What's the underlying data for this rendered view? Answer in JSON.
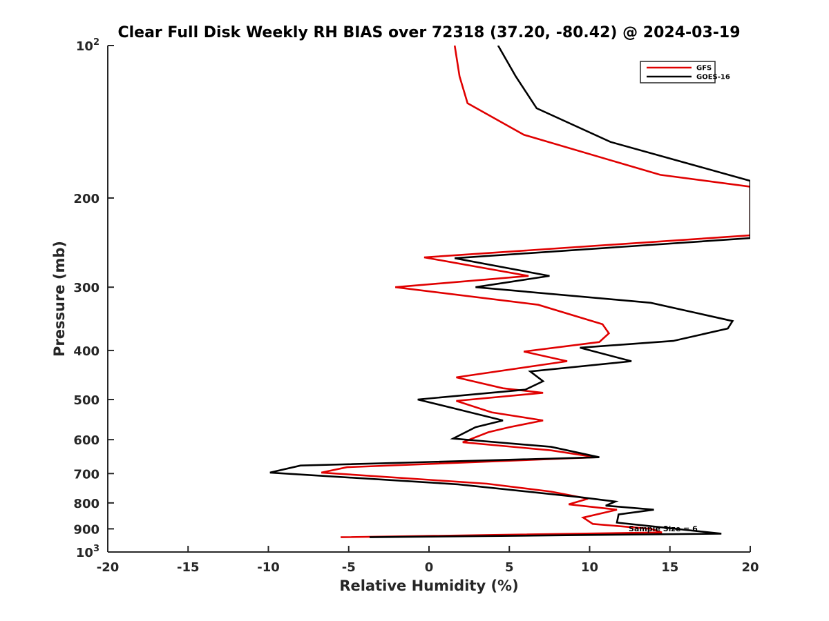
{
  "chart_data": {
    "type": "line",
    "title": "Clear Full Disk Weekly RH BIAS over 72318 (37.20, -80.42) @ 2024-03-19",
    "xlabel": "Relative Humidity (%)",
    "ylabel": "Pressure (mb)",
    "xlim": [
      -20,
      20
    ],
    "ylim": [
      100,
      1000
    ],
    "y_scale": "log",
    "y_reversed": true,
    "x_ticks": [
      "-20",
      "-15",
      "-10",
      "-5",
      "0",
      "5",
      "10",
      "15",
      "20"
    ],
    "y_ticks": [
      {
        "value": 100,
        "base": "10",
        "exp": "2"
      },
      {
        "value": 200,
        "label": "200"
      },
      {
        "value": 300,
        "label": "300"
      },
      {
        "value": 400,
        "label": "400"
      },
      {
        "value": 500,
        "label": "500"
      },
      {
        "value": 600,
        "label": "600"
      },
      {
        "value": 700,
        "label": "700"
      },
      {
        "value": 800,
        "label": "800"
      },
      {
        "value": 900,
        "label": "900"
      },
      {
        "value": 1000,
        "base": "10",
        "exp": "3"
      }
    ],
    "grid": false,
    "legend_position": "top-right",
    "annotation": "Sample Size = 6",
    "series": [
      {
        "name": "GFS",
        "color": "#e00000",
        "points": [
          [
            1.6,
            100
          ],
          [
            1.9,
            115
          ],
          [
            2.4,
            130
          ],
          [
            5.9,
            150
          ],
          [
            14.4,
            180
          ],
          [
            20,
            190
          ],
          [
            20,
            237
          ],
          [
            -0.3,
            262
          ],
          [
            6.2,
            285
          ],
          [
            -2.1,
            300
          ],
          [
            6.8,
            325
          ],
          [
            10.8,
            355
          ],
          [
            11.2,
            370
          ],
          [
            10.6,
            385
          ],
          [
            5.9,
            402
          ],
          [
            8.6,
            420
          ],
          [
            1.7,
            452
          ],
          [
            4.6,
            475
          ],
          [
            7.1,
            485
          ],
          [
            1.7,
            503
          ],
          [
            3.9,
            530
          ],
          [
            7.1,
            550
          ],
          [
            5.0,
            567
          ],
          [
            3.7,
            580
          ],
          [
            2.1,
            607
          ],
          [
            7.6,
            630
          ],
          [
            10.4,
            650
          ],
          [
            -5.1,
            680
          ],
          [
            -6.7,
            697
          ],
          [
            3.6,
            733
          ],
          [
            7.6,
            760
          ],
          [
            9.9,
            785
          ],
          [
            8.7,
            805
          ],
          [
            11.7,
            825
          ],
          [
            9.6,
            855
          ],
          [
            10.2,
            880
          ],
          [
            13.8,
            900
          ],
          [
            14.5,
            915
          ],
          [
            -5.5,
            935
          ]
        ]
      },
      {
        "name": "GOES-16",
        "color": "#000000",
        "points": [
          [
            4.3,
            100
          ],
          [
            5.4,
            115
          ],
          [
            6.7,
            133
          ],
          [
            11.3,
            155
          ],
          [
            20,
            185
          ],
          [
            20,
            240
          ],
          [
            1.6,
            263
          ],
          [
            7.5,
            285
          ],
          [
            2.9,
            300
          ],
          [
            13.8,
            322
          ],
          [
            18.9,
            350
          ],
          [
            18.6,
            362
          ],
          [
            15.2,
            383
          ],
          [
            9.4,
            395
          ],
          [
            12.6,
            420
          ],
          [
            6.3,
            440
          ],
          [
            7.1,
            460
          ],
          [
            6.0,
            478
          ],
          [
            -0.7,
            500
          ],
          [
            1.5,
            520
          ],
          [
            4.6,
            550
          ],
          [
            2.9,
            567
          ],
          [
            1.5,
            597
          ],
          [
            7.6,
            620
          ],
          [
            10.6,
            650
          ],
          [
            -8.0,
            675
          ],
          [
            -9.9,
            697
          ],
          [
            1.8,
            735
          ],
          [
            9.5,
            780
          ],
          [
            11.6,
            795
          ],
          [
            11.0,
            810
          ],
          [
            14.0,
            825
          ],
          [
            11.8,
            843
          ],
          [
            11.7,
            875
          ],
          [
            18.2,
            920
          ],
          [
            -3.7,
            935
          ]
        ]
      }
    ]
  }
}
